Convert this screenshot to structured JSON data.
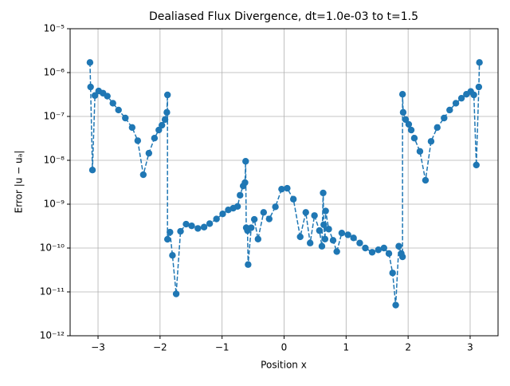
{
  "chart_data": {
    "type": "line",
    "title": "Dealiased Flux Divergence, dt=1.0e-03 to t=1.5",
    "x_label": "Position x",
    "y_label": "Error |u − uₐ|",
    "xlim": [
      -3.45,
      3.45
    ],
    "ylim": [
      1e-12,
      1e-05
    ],
    "log_y": true,
    "grid": true,
    "xticks": [
      {
        "value": -3,
        "label": "−3"
      },
      {
        "value": -2,
        "label": "−2"
      },
      {
        "value": -1,
        "label": "−1"
      },
      0,
      1,
      2,
      3
    ],
    "yticks": [
      {
        "value": 1e-12,
        "label": "10⁻¹²"
      },
      {
        "value": 1e-11,
        "label": "10⁻¹¹"
      },
      {
        "value": 1e-10,
        "label": "10⁻¹⁰"
      },
      {
        "value": 1e-09,
        "label": "10⁻⁹"
      },
      {
        "value": 1e-08,
        "label": "10⁻⁸"
      },
      {
        "value": 1e-07,
        "label": "10⁻⁷"
      },
      {
        "value": 1e-06,
        "label": "10⁻⁶"
      },
      {
        "value": 1e-05,
        "label": "10⁻⁵"
      }
    ],
    "series": [
      {
        "color": "#1f77b4",
        "x": [
          -3.13,
          -3.12,
          -3.09,
          -3.05,
          -2.99,
          -2.92,
          -2.85,
          -2.76,
          -2.67,
          -2.56,
          -2.45,
          -2.36,
          -2.27,
          -2.18,
          -2.09,
          -2.02,
          -1.97,
          -1.92,
          -1.89,
          -1.88,
          -1.88,
          -1.84,
          -1.8,
          -1.74,
          -1.67,
          -1.58,
          -1.49,
          -1.39,
          -1.29,
          -1.2,
          -1.09,
          -0.99,
          -0.9,
          -0.82,
          -0.75,
          -0.71,
          -0.66,
          -0.63,
          -0.62,
          -0.61,
          -0.59,
          -0.58,
          -0.53,
          -0.48,
          -0.42,
          -0.33,
          -0.24,
          -0.14,
          -0.04,
          0.05,
          0.15,
          0.26,
          0.35,
          0.42,
          0.49,
          0.57,
          0.61,
          0.63,
          0.64,
          0.66,
          0.67,
          0.72,
          0.79,
          0.85,
          0.93,
          1.03,
          1.12,
          1.22,
          1.31,
          1.42,
          1.52,
          1.61,
          1.69,
          1.75,
          1.8,
          1.85,
          1.89,
          1.91,
          1.91,
          1.92,
          1.96,
          2.01,
          2.05,
          2.1,
          2.19,
          2.28,
          2.37,
          2.47,
          2.58,
          2.67,
          2.77,
          2.86,
          2.94,
          3.01,
          3.06,
          3.1,
          3.14,
          3.15
        ],
        "values": [
          1.7e-06,
          4.7e-07,
          6e-09,
          3e-07,
          3.8e-07,
          3.4e-07,
          2.9e-07,
          2e-07,
          1.4e-07,
          9.2e-08,
          5.6e-08,
          2.8e-08,
          4.7e-09,
          1.45e-08,
          3.2e-08,
          4.9e-08,
          6.3e-08,
          8.5e-08,
          1.24e-07,
          3.1e-07,
          1.58e-10,
          2.3e-10,
          6.8e-11,
          9e-12,
          2.4e-10,
          3.5e-10,
          3.2e-10,
          2.8e-10,
          3e-10,
          3.6e-10,
          4.6e-10,
          6e-10,
          7.4e-10,
          8.1e-10,
          8.9e-10,
          1.6e-09,
          2.6e-09,
          3.1e-09,
          9.5e-09,
          2.9e-10,
          2.5e-10,
          4.2e-11,
          2.9e-10,
          4.5e-10,
          1.6e-10,
          6.5e-10,
          4.6e-10,
          8.7e-10,
          2.2e-09,
          2.3e-09,
          1.3e-09,
          1.8e-10,
          6.5e-10,
          1.3e-10,
          5.5e-10,
          2.5e-10,
          1.1e-10,
          1.8e-09,
          3.4e-10,
          1.6e-10,
          7e-10,
          2.7e-10,
          1.5e-10,
          8.3e-11,
          2.2e-10,
          2e-10,
          1.7e-10,
          1.3e-10,
          1e-10,
          8e-11,
          9.1e-11,
          1e-10,
          7.5e-11,
          2.7e-11,
          5e-12,
          1.1e-10,
          7.5e-11,
          6.3e-11,
          3.2e-07,
          1.24e-07,
          8.5e-08,
          6.6e-08,
          4.9e-08,
          3.2e-08,
          1.6e-08,
          3.5e-09,
          2.7e-08,
          5.6e-08,
          9.2e-08,
          1.4e-07,
          2e-07,
          2.6e-07,
          3.2e-07,
          3.7e-07,
          3.1e-07,
          7.8e-09,
          4.7e-07,
          1.7e-06
        ]
      }
    ]
  }
}
